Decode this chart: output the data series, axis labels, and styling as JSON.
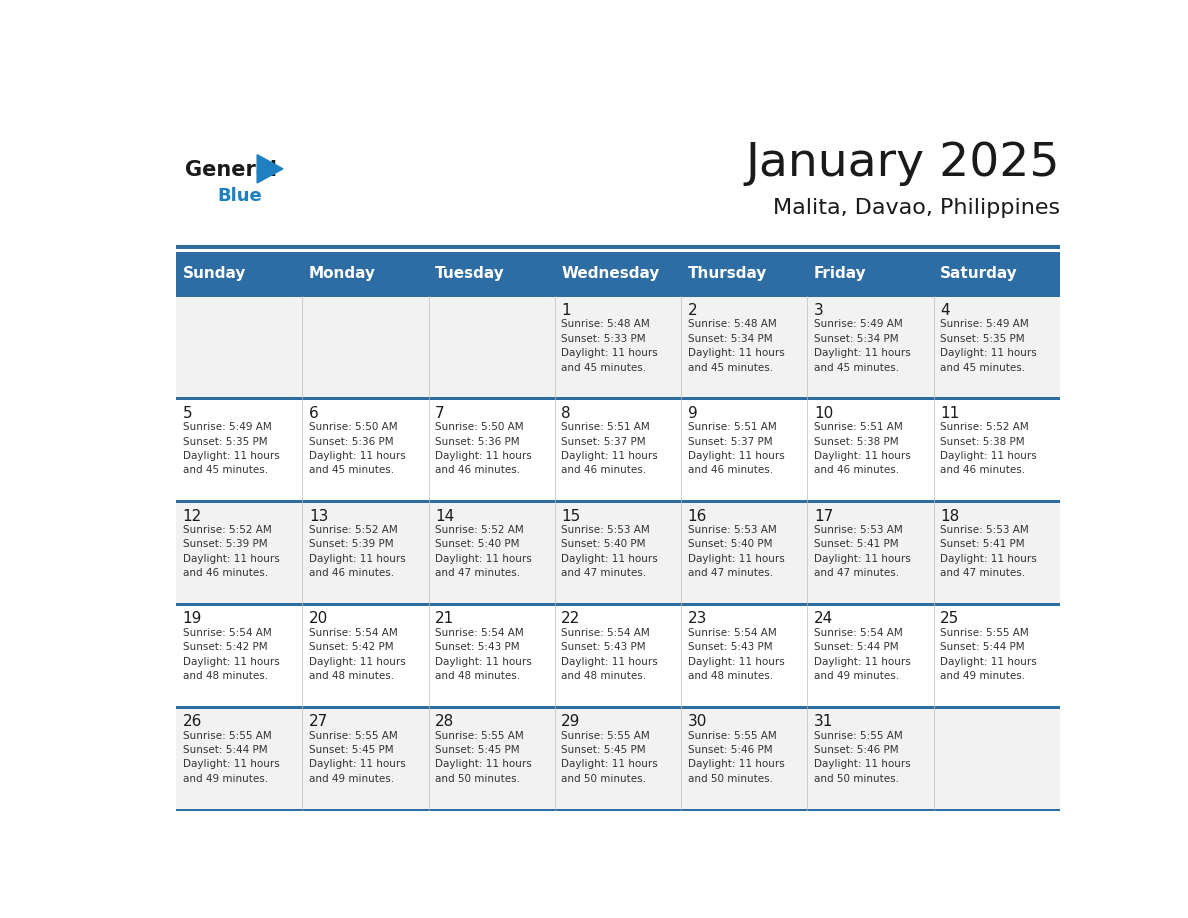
{
  "title": "January 2025",
  "subtitle": "Malita, Davao, Philippines",
  "days_of_week": [
    "Sunday",
    "Monday",
    "Tuesday",
    "Wednesday",
    "Thursday",
    "Friday",
    "Saturday"
  ],
  "header_bg": "#2E6DA4",
  "header_text_color": "#FFFFFF",
  "grid_line_color": "#2E6DA4",
  "text_color": "#333333",
  "day_num_color": "#1a1a1a",
  "calendar_data": [
    [
      null,
      null,
      null,
      1,
      2,
      3,
      4
    ],
    [
      5,
      6,
      7,
      8,
      9,
      10,
      11
    ],
    [
      12,
      13,
      14,
      15,
      16,
      17,
      18
    ],
    [
      19,
      20,
      21,
      22,
      23,
      24,
      25
    ],
    [
      26,
      27,
      28,
      29,
      30,
      31,
      null
    ]
  ],
  "sunrise_data": {
    "1": "5:48 AM",
    "2": "5:48 AM",
    "3": "5:49 AM",
    "4": "5:49 AM",
    "5": "5:49 AM",
    "6": "5:50 AM",
    "7": "5:50 AM",
    "8": "5:51 AM",
    "9": "5:51 AM",
    "10": "5:51 AM",
    "11": "5:52 AM",
    "12": "5:52 AM",
    "13": "5:52 AM",
    "14": "5:52 AM",
    "15": "5:53 AM",
    "16": "5:53 AM",
    "17": "5:53 AM",
    "18": "5:53 AM",
    "19": "5:54 AM",
    "20": "5:54 AM",
    "21": "5:54 AM",
    "22": "5:54 AM",
    "23": "5:54 AM",
    "24": "5:54 AM",
    "25": "5:55 AM",
    "26": "5:55 AM",
    "27": "5:55 AM",
    "28": "5:55 AM",
    "29": "5:55 AM",
    "30": "5:55 AM",
    "31": "5:55 AM"
  },
  "sunset_data": {
    "1": "5:33 PM",
    "2": "5:34 PM",
    "3": "5:34 PM",
    "4": "5:35 PM",
    "5": "5:35 PM",
    "6": "5:36 PM",
    "7": "5:36 PM",
    "8": "5:37 PM",
    "9": "5:37 PM",
    "10": "5:38 PM",
    "11": "5:38 PM",
    "12": "5:39 PM",
    "13": "5:39 PM",
    "14": "5:40 PM",
    "15": "5:40 PM",
    "16": "5:40 PM",
    "17": "5:41 PM",
    "18": "5:41 PM",
    "19": "5:42 PM",
    "20": "5:42 PM",
    "21": "5:43 PM",
    "22": "5:43 PM",
    "23": "5:43 PM",
    "24": "5:44 PM",
    "25": "5:44 PM",
    "26": "5:44 PM",
    "27": "5:45 PM",
    "28": "5:45 PM",
    "29": "5:45 PM",
    "30": "5:46 PM",
    "31": "5:46 PM"
  },
  "daylight_data": {
    "1": "11 hours\nand 45 minutes.",
    "2": "11 hours\nand 45 minutes.",
    "3": "11 hours\nand 45 minutes.",
    "4": "11 hours\nand 45 minutes.",
    "5": "11 hours\nand 45 minutes.",
    "6": "11 hours\nand 45 minutes.",
    "7": "11 hours\nand 46 minutes.",
    "8": "11 hours\nand 46 minutes.",
    "9": "11 hours\nand 46 minutes.",
    "10": "11 hours\nand 46 minutes.",
    "11": "11 hours\nand 46 minutes.",
    "12": "11 hours\nand 46 minutes.",
    "13": "11 hours\nand 46 minutes.",
    "14": "11 hours\nand 47 minutes.",
    "15": "11 hours\nand 47 minutes.",
    "16": "11 hours\nand 47 minutes.",
    "17": "11 hours\nand 47 minutes.",
    "18": "11 hours\nand 47 minutes.",
    "19": "11 hours\nand 48 minutes.",
    "20": "11 hours\nand 48 minutes.",
    "21": "11 hours\nand 48 minutes.",
    "22": "11 hours\nand 48 minutes.",
    "23": "11 hours\nand 48 minutes.",
    "24": "11 hours\nand 49 minutes.",
    "25": "11 hours\nand 49 minutes.",
    "26": "11 hours\nand 49 minutes.",
    "27": "11 hours\nand 49 minutes.",
    "28": "11 hours\nand 50 minutes.",
    "29": "11 hours\nand 50 minutes.",
    "30": "11 hours\nand 50 minutes.",
    "31": "11 hours\nand 50 minutes."
  }
}
